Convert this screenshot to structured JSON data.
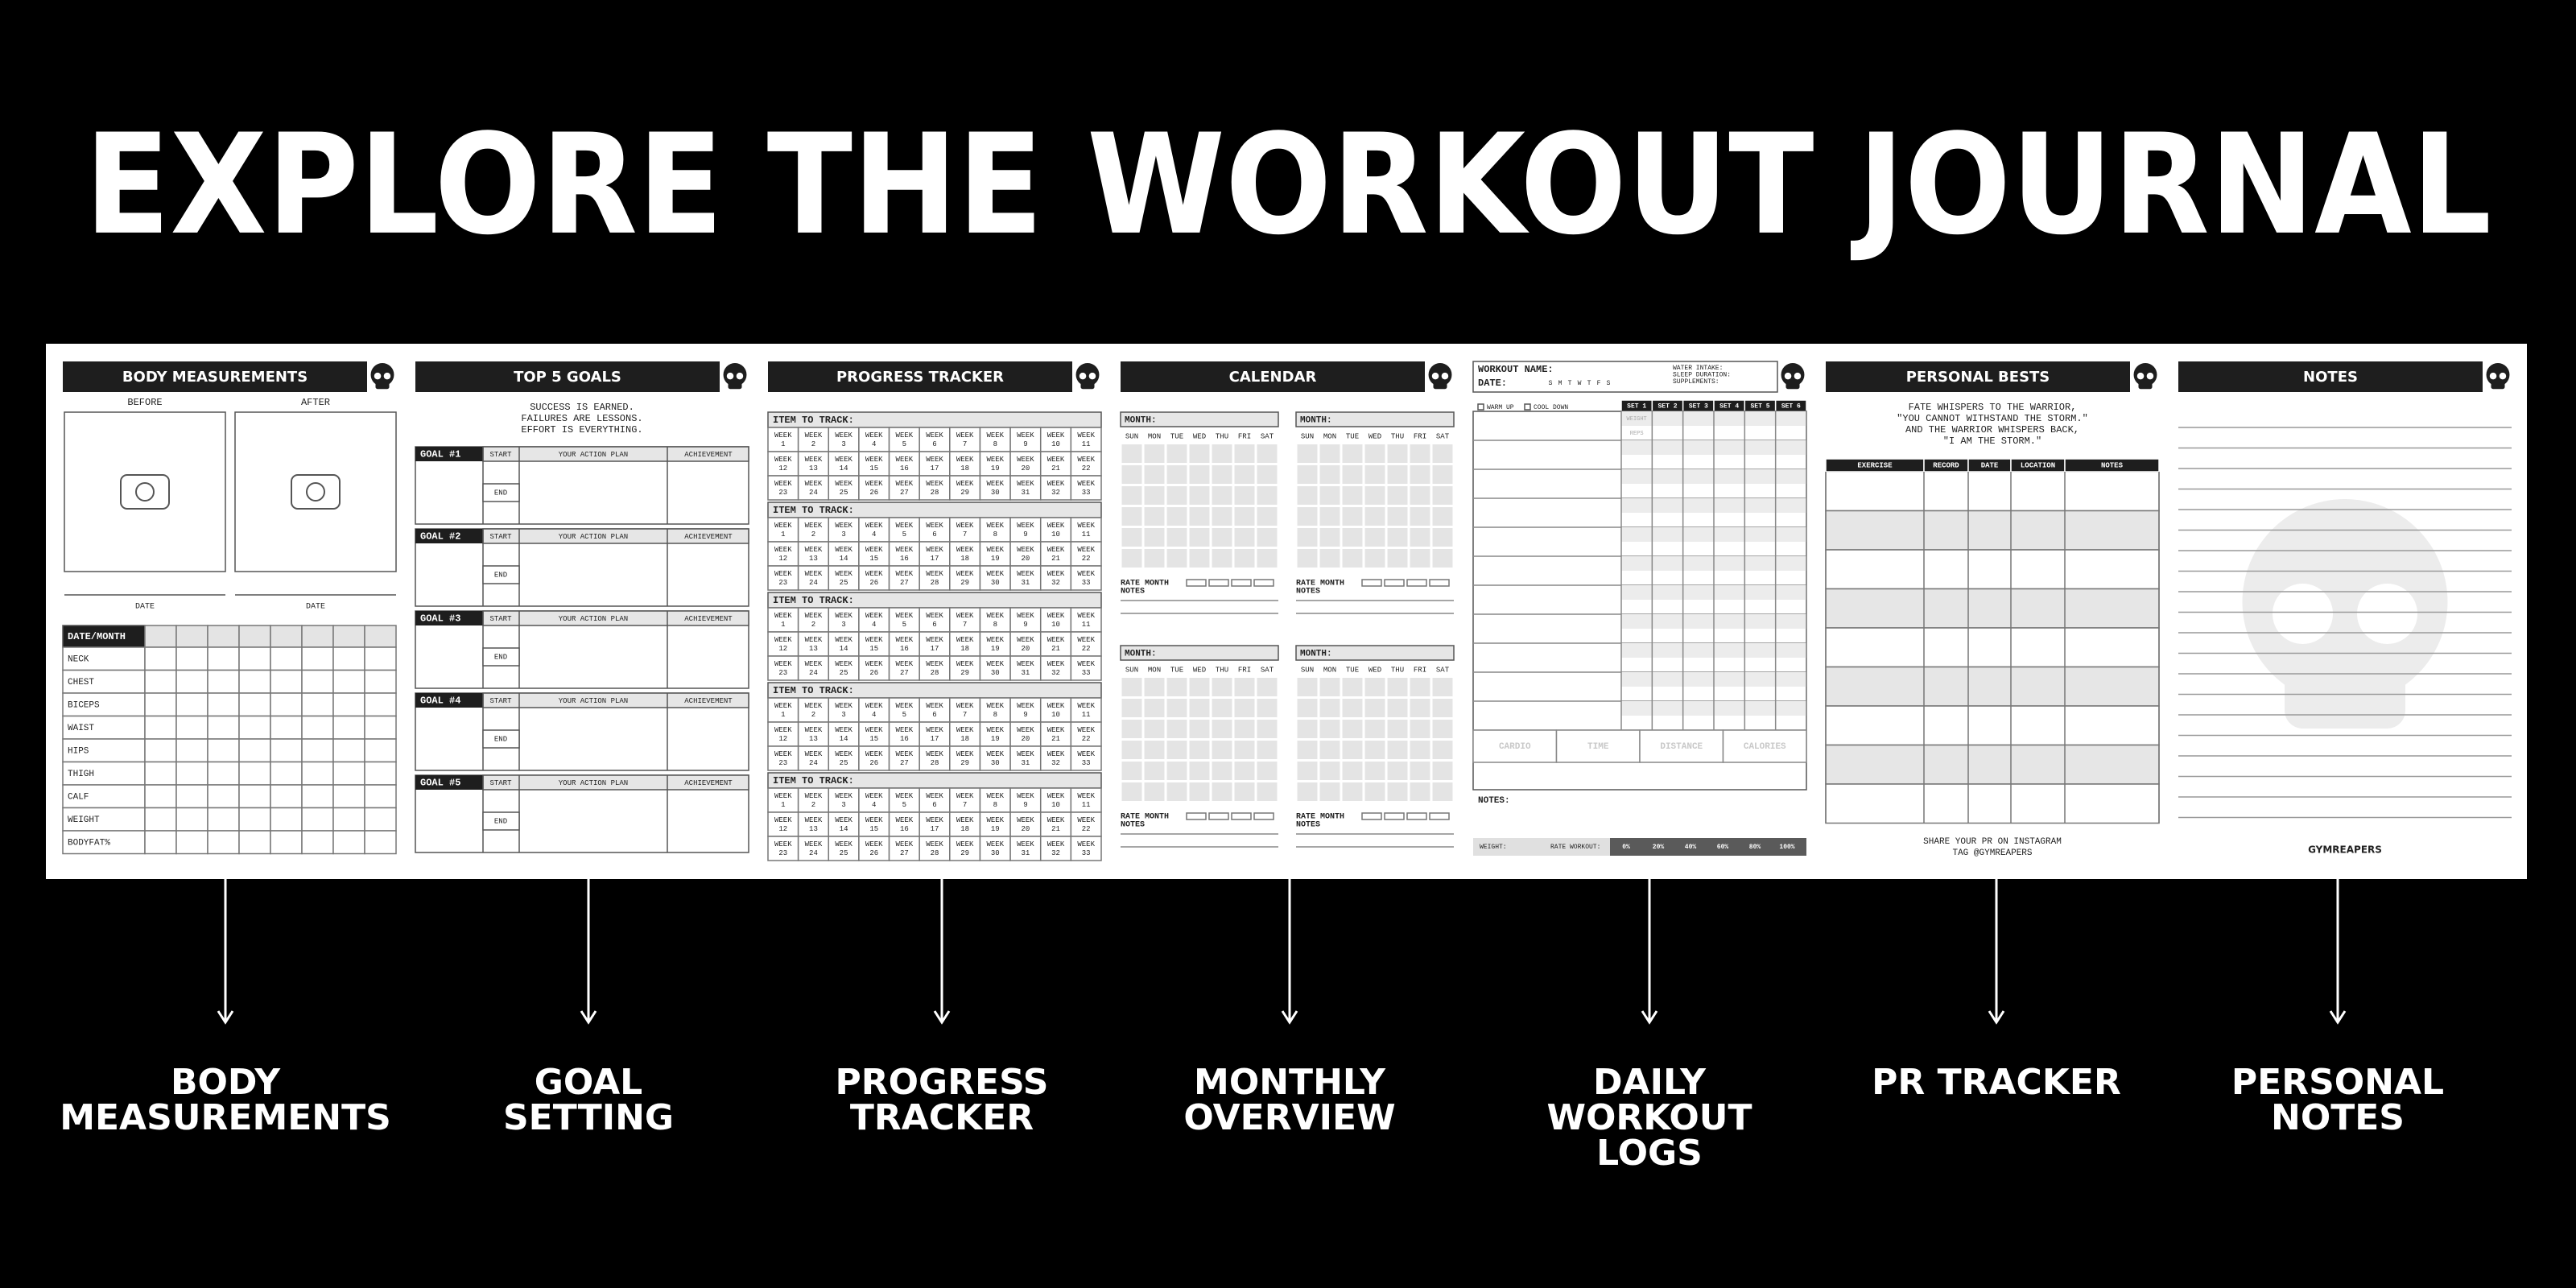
{
  "title": "EXPLORE THE WORKOUT JOURNAL",
  "pages": [
    {
      "header": "BODY MEASUREMENTS",
      "before": "BEFORE",
      "after": "AFTER",
      "date": "DATE",
      "table_header": "DATE/MONTH",
      "rows": [
        "NECK",
        "CHEST",
        "BICEPS",
        "WAIST",
        "HIPS",
        "THIGH",
        "CALF",
        "WEIGHT",
        "BODYFAT%"
      ]
    },
    {
      "header": "TOP 5 GOALS",
      "quote": [
        "SUCCESS IS EARNED.",
        "FAILURES ARE LESSONS.",
        "EFFORT IS EVERYTHING."
      ],
      "goals": [
        "GOAL #1",
        "GOAL #2",
        "GOAL #3",
        "GOAL #4",
        "GOAL #5"
      ],
      "start": "START",
      "end": "END",
      "plan": "YOUR ACTION PLAN",
      "achievement": "ACHIEVEMENT"
    },
    {
      "header": "PROGRESS TRACKER",
      "item": "ITEM TO TRACK:",
      "week": "WEEK",
      "weeks": [
        1,
        2,
        3,
        4,
        5,
        6,
        7,
        8,
        9,
        10,
        11,
        12,
        13,
        14,
        15,
        16,
        17,
        18,
        19,
        20,
        21,
        22,
        23,
        24,
        25,
        26,
        27,
        28,
        29,
        30,
        31,
        32,
        33
      ]
    },
    {
      "header": "CALENDAR",
      "month": "MONTH:",
      "days": [
        "SUN",
        "MON",
        "TUE",
        "WED",
        "THU",
        "FRI",
        "SAT"
      ],
      "rate": "RATE MONTH",
      "notes": "NOTES"
    },
    {
      "workout_name": "WORKOUT NAME:",
      "date": "DATE:",
      "day_letters": [
        "S",
        "M",
        "T",
        "W",
        "T",
        "F",
        "S"
      ],
      "info": [
        "WATER INTAKE:",
        "SLEEP DURATION:",
        "SUPPLEMENTS:"
      ],
      "warm_up": "WARM UP",
      "cool_down": "COOL DOWN",
      "sets": [
        "SET 1",
        "SET 2",
        "SET 3",
        "SET 4",
        "SET 5",
        "SET 6"
      ],
      "weight_reps": [
        "WEIGHT",
        "REPS"
      ],
      "cardio": [
        "CARDIO",
        "TIME",
        "DISTANCE",
        "CALORIES"
      ],
      "notes": "NOTES:",
      "weight": "WEIGHT:",
      "rate": "RATE WORKOUT:",
      "ratings": [
        "0%",
        "20%",
        "40%",
        "60%",
        "80%",
        "100%"
      ]
    },
    {
      "header": "PERSONAL BESTS",
      "quote": [
        "FATE WHISPERS TO THE WARRIOR,",
        "\"YOU CANNOT WITHSTAND THE STORM.\"",
        "AND THE WARRIOR WHISPERS BACK,",
        "\"I AM THE STORM.\""
      ],
      "columns": [
        "EXERCISE",
        "RECORD",
        "DATE",
        "LOCATION",
        "NOTES"
      ],
      "footer": [
        "SHARE YOUR PR ON INSTAGRAM",
        "TAG @GYMREAPERS"
      ]
    },
    {
      "header": "NOTES",
      "brand": "GYMREAPERS"
    }
  ],
  "features": [
    [
      "BODY",
      "MEASUREMENTS"
    ],
    [
      "GOAL",
      "SETTING"
    ],
    [
      "PROGRESS",
      "TRACKER"
    ],
    [
      "MONTHLY",
      "OVERVIEW"
    ],
    [
      "DAILY",
      "WORKOUT",
      "LOGS"
    ],
    [
      "PR TRACKER"
    ],
    [
      "PERSONAL",
      "NOTES"
    ]
  ]
}
